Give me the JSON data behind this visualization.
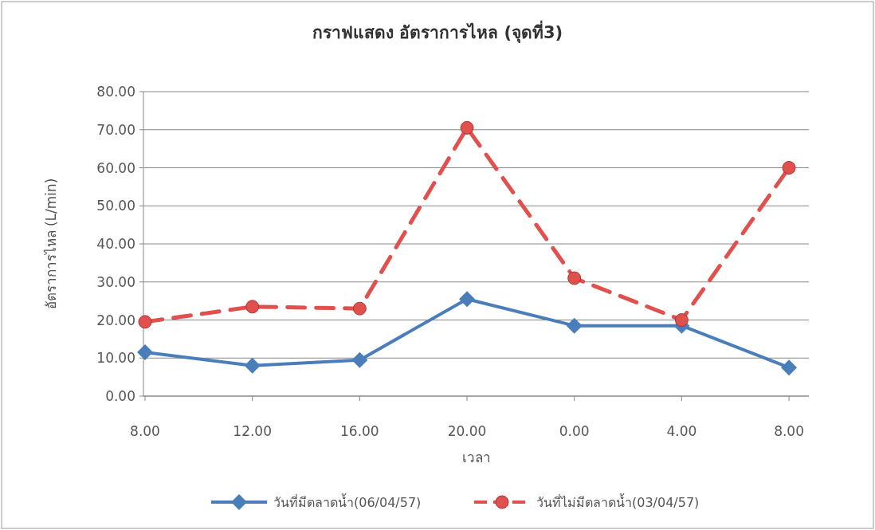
{
  "chart_data": {
    "type": "line",
    "title": "กราฟแสดง อัตราการไหล (จุดที่3)",
    "xlabel": "เวลา",
    "ylabel": "อัตราการไหล (L/min)",
    "categories": [
      "8.00",
      "12.00",
      "16.00",
      "20.00",
      "0.00",
      "4.00",
      "8.00"
    ],
    "series": [
      {
        "name": "วันที่มีตลาดน้ำ(06/04/57)",
        "color": "#4a7ebb",
        "marker": "diamond",
        "line_style": "solid",
        "values": [
          11.5,
          8.0,
          9.5,
          25.5,
          18.5,
          18.5,
          7.5
        ]
      },
      {
        "name": "วันที่ไม่มีตลาดน้ำ(03/04/57)",
        "color": "#e0504d",
        "marker": "circle",
        "line_style": "dashed",
        "values": [
          19.5,
          23.5,
          23.0,
          70.5,
          31.0,
          20.0,
          60.0
        ]
      }
    ],
    "ylim": [
      0,
      80
    ],
    "yticks": [
      {
        "value": 0,
        "label": "0.00"
      },
      {
        "value": 10,
        "label": "10.00"
      },
      {
        "value": 20,
        "label": "20.00"
      },
      {
        "value": 30,
        "label": "30.00"
      },
      {
        "value": 40,
        "label": "40.00"
      },
      {
        "value": 50,
        "label": "50.00"
      },
      {
        "value": 60,
        "label": "60.00"
      },
      {
        "value": 70,
        "label": "70.00"
      },
      {
        "value": 80,
        "label": "80.00"
      }
    ],
    "grid": "y",
    "legend": "bottom"
  }
}
